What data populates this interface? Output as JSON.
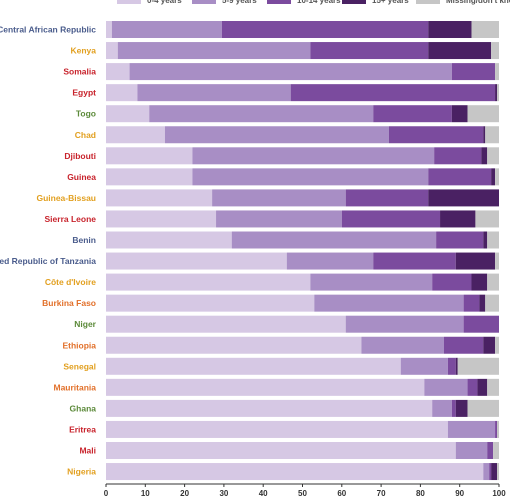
{
  "chart_data": {
    "type": "bar",
    "orientation": "horizontal",
    "stacked": true,
    "xlim": [
      0,
      100
    ],
    "x_ticks": [
      "0",
      "10",
      "20",
      "30",
      "40",
      "50",
      "60",
      "70",
      "80",
      "90",
      "100"
    ],
    "grid": false,
    "legend_position": "top",
    "legend": [
      {
        "label": "0-4 years",
        "color": "#d6c8e4"
      },
      {
        "label": "5-9 years",
        "color": "#a88ec5"
      },
      {
        "label": "10-14 years",
        "color": "#7b4b9e"
      },
      {
        "label": "15+ years",
        "color": "#4a2163"
      },
      {
        "label": "Missing/don't know",
        "color": "#c6c6c6"
      }
    ],
    "categories": [
      {
        "label": "Central African Republic",
        "color": "#4a5c8c"
      },
      {
        "label": "Kenya",
        "color": "#e2a020"
      },
      {
        "label": "Somalia",
        "color": "#c8232c"
      },
      {
        "label": "Egypt",
        "color": "#c8232c"
      },
      {
        "label": "Togo",
        "color": "#5c8a3a"
      },
      {
        "label": "Chad",
        "color": "#e2a020"
      },
      {
        "label": "Djibouti",
        "color": "#c8232c"
      },
      {
        "label": "Guinea",
        "color": "#c8232c"
      },
      {
        "label": "Guinea-Bissau",
        "color": "#e2a020"
      },
      {
        "label": "Sierra Leone",
        "color": "#c8232c"
      },
      {
        "label": "Benin",
        "color": "#4a5c8c"
      },
      {
        "label": "United Republic of Tanzania",
        "color": "#4a5c8c"
      },
      {
        "label": "Côte d'Ivoire",
        "color": "#e2a020"
      },
      {
        "label": "Burkina Faso",
        "color": "#e2702a"
      },
      {
        "label": "Niger",
        "color": "#5c8a3a"
      },
      {
        "label": "Ethiopia",
        "color": "#e2702a"
      },
      {
        "label": "Senegal",
        "color": "#e2a020"
      },
      {
        "label": "Mauritania",
        "color": "#e2702a"
      },
      {
        "label": "Ghana",
        "color": "#5c8a3a"
      },
      {
        "label": "Eritrea",
        "color": "#c8232c"
      },
      {
        "label": "Mali",
        "color": "#c8232c"
      },
      {
        "label": "Nigeria",
        "color": "#e2a020"
      }
    ],
    "series": [
      {
        "name": "0-4 years",
        "values": [
          1.5,
          3,
          6,
          8,
          11,
          15,
          22,
          22,
          27,
          28,
          32,
          46,
          52,
          53,
          61,
          65,
          75,
          81,
          83,
          87,
          89,
          96
        ]
      },
      {
        "name": "5-9 years",
        "values": [
          28,
          49,
          82,
          39,
          57,
          57,
          61.5,
          60,
          34,
          32,
          52,
          22,
          31,
          38,
          30,
          21,
          12,
          11,
          5,
          12,
          8,
          1.5
        ]
      },
      {
        "name": "10-14 years",
        "values": [
          52.5,
          30,
          11,
          52,
          20,
          24,
          12,
          16,
          21,
          25,
          12,
          21,
          10,
          4,
          9,
          10,
          2,
          2.5,
          1,
          0.5,
          1.5,
          0.5
        ]
      },
      {
        "name": "15+ years",
        "values": [
          11,
          16,
          0,
          0.5,
          4,
          0.5,
          1.5,
          1,
          18,
          9,
          1,
          10,
          4,
          1.5,
          0,
          3,
          0.5,
          2.5,
          3,
          0,
          0,
          1.5
        ]
      },
      {
        "name": "Missing/don't know",
        "values": [
          7,
          2,
          1,
          0.5,
          8,
          3.5,
          3,
          1,
          0,
          6,
          3,
          1,
          3,
          3.5,
          0,
          1,
          10.5,
          3,
          8,
          0.5,
          1.5,
          0.5
        ]
      }
    ]
  }
}
